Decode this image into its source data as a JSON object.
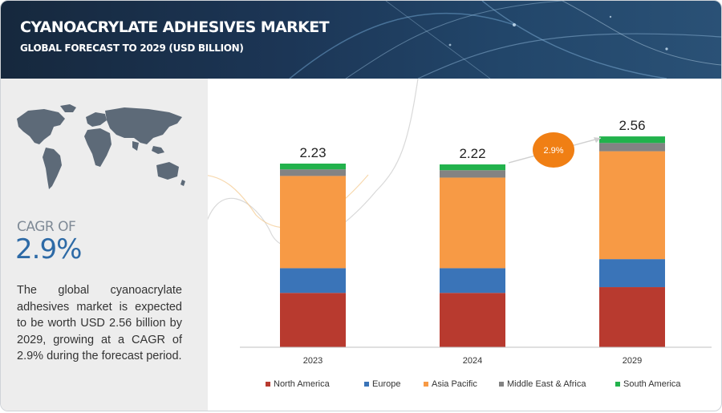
{
  "header": {
    "title": "CYANOACRYLATE ADHESIVES MARKET",
    "subtitle": "GLOBAL FORECAST TO 2029 (USD BILLION)"
  },
  "sidebar": {
    "cagr_label": "CAGR OF",
    "cagr_value": "2.9%",
    "description": "The global cyanoacrylate adhesives market is expected to be worth USD 2.56 billion by 2029, growing at a CAGR of 2.9% during the forecast period."
  },
  "chart_data": {
    "type": "bar",
    "stacked": true,
    "title": "CYANOACRYLATE ADHESIVES MARKET",
    "subtitle": "GLOBAL FORECAST TO 2029 (USD BILLION)",
    "xlabel": "",
    "ylabel": "",
    "ylim": [
      0,
      2.6
    ],
    "grid": false,
    "legend_position": "bottom",
    "categories": [
      "2023",
      "2024",
      "2029"
    ],
    "totals": [
      2.23,
      2.22,
      2.56
    ],
    "total_labels": [
      "2.23",
      "2.22",
      "2.56"
    ],
    "series": [
      {
        "name": "North America",
        "color": "#b83a2f",
        "values": [
          0.66,
          0.66,
          0.73
        ]
      },
      {
        "name": "Europe",
        "color": "#3a74b8",
        "values": [
          0.3,
          0.3,
          0.34
        ]
      },
      {
        "name": "Asia Pacific",
        "color": "#f79a45",
        "values": [
          1.12,
          1.1,
          1.31
        ]
      },
      {
        "name": "Middle East & Africa",
        "color": "#838383",
        "values": [
          0.08,
          0.09,
          0.1
        ]
      },
      {
        "name": "South America",
        "color": "#22b24c",
        "values": [
          0.07,
          0.07,
          0.08
        ]
      }
    ],
    "annotation": {
      "label": "2.9%",
      "color": "#f07f14",
      "from": "2024",
      "to": "2029"
    }
  }
}
